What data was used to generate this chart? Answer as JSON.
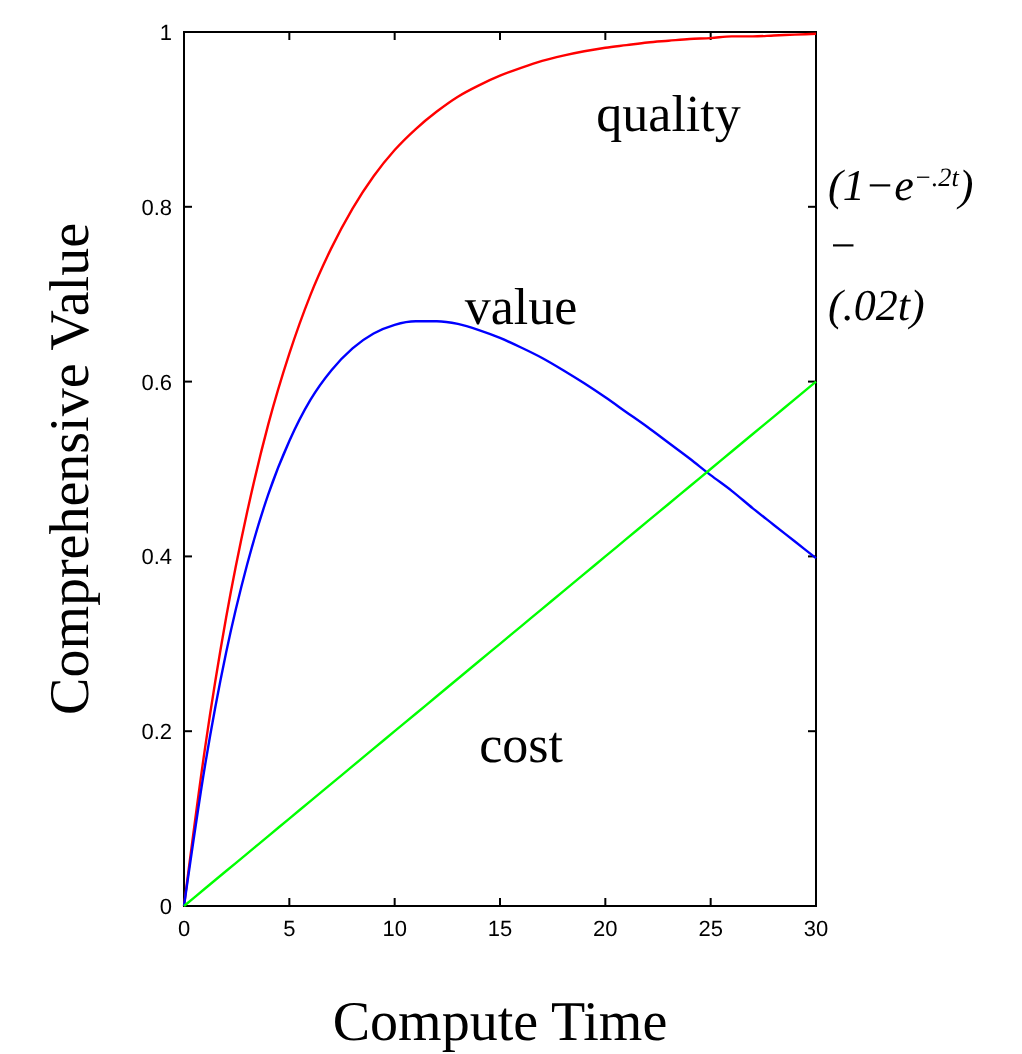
{
  "chart_data": {
    "type": "line",
    "xlabel": "Compute Time",
    "ylabel": "Comprehensive Value",
    "x": [
      0,
      1,
      2,
      3,
      4,
      5,
      6,
      7,
      8,
      9,
      10,
      11,
      12,
      13,
      14,
      15,
      16,
      17,
      18,
      19,
      20,
      21,
      22,
      23,
      24,
      25,
      26,
      27,
      28,
      29,
      30
    ],
    "xlim": [
      0,
      30
    ],
    "xticks": [
      0,
      5,
      10,
      15,
      20,
      25,
      30
    ],
    "ylim": [
      0,
      1
    ],
    "yticks": [
      0,
      0.2,
      0.4,
      0.6,
      0.8,
      1
    ],
    "series": [
      {
        "name": "quality",
        "color": "#ff0000",
        "values": [
          0,
          0.181,
          0.33,
          0.451,
          0.551,
          0.632,
          0.699,
          0.753,
          0.798,
          0.835,
          0.865,
          0.889,
          0.909,
          0.926,
          0.939,
          0.95,
          0.959,
          0.967,
          0.973,
          0.978,
          0.982,
          0.985,
          0.988,
          0.99,
          0.992,
          0.993,
          0.995,
          0.995,
          0.996,
          0.997,
          0.998
        ]
      },
      {
        "name": "value",
        "color": "#0000ff",
        "values": [
          0,
          0.161,
          0.29,
          0.391,
          0.471,
          0.532,
          0.579,
          0.613,
          0.638,
          0.655,
          0.665,
          0.669,
          0.669,
          0.666,
          0.659,
          0.65,
          0.639,
          0.627,
          0.613,
          0.598,
          0.582,
          0.565,
          0.548,
          0.53,
          0.512,
          0.493,
          0.475,
          0.455,
          0.436,
          0.417,
          0.398
        ]
      },
      {
        "name": "cost",
        "color": "#00ff00",
        "values": [
          0,
          0.02,
          0.04,
          0.06,
          0.08,
          0.1,
          0.12,
          0.14,
          0.16,
          0.18,
          0.2,
          0.22,
          0.24,
          0.26,
          0.28,
          0.3,
          0.32,
          0.34,
          0.36,
          0.38,
          0.4,
          0.42,
          0.44,
          0.46,
          0.48,
          0.5,
          0.52,
          0.54,
          0.56,
          0.58,
          0.6
        ]
      }
    ],
    "annotations": [
      "(1−e$^{−.2t}$)",
      "−",
      "(.02t)"
    ],
    "grid": false
  }
}
